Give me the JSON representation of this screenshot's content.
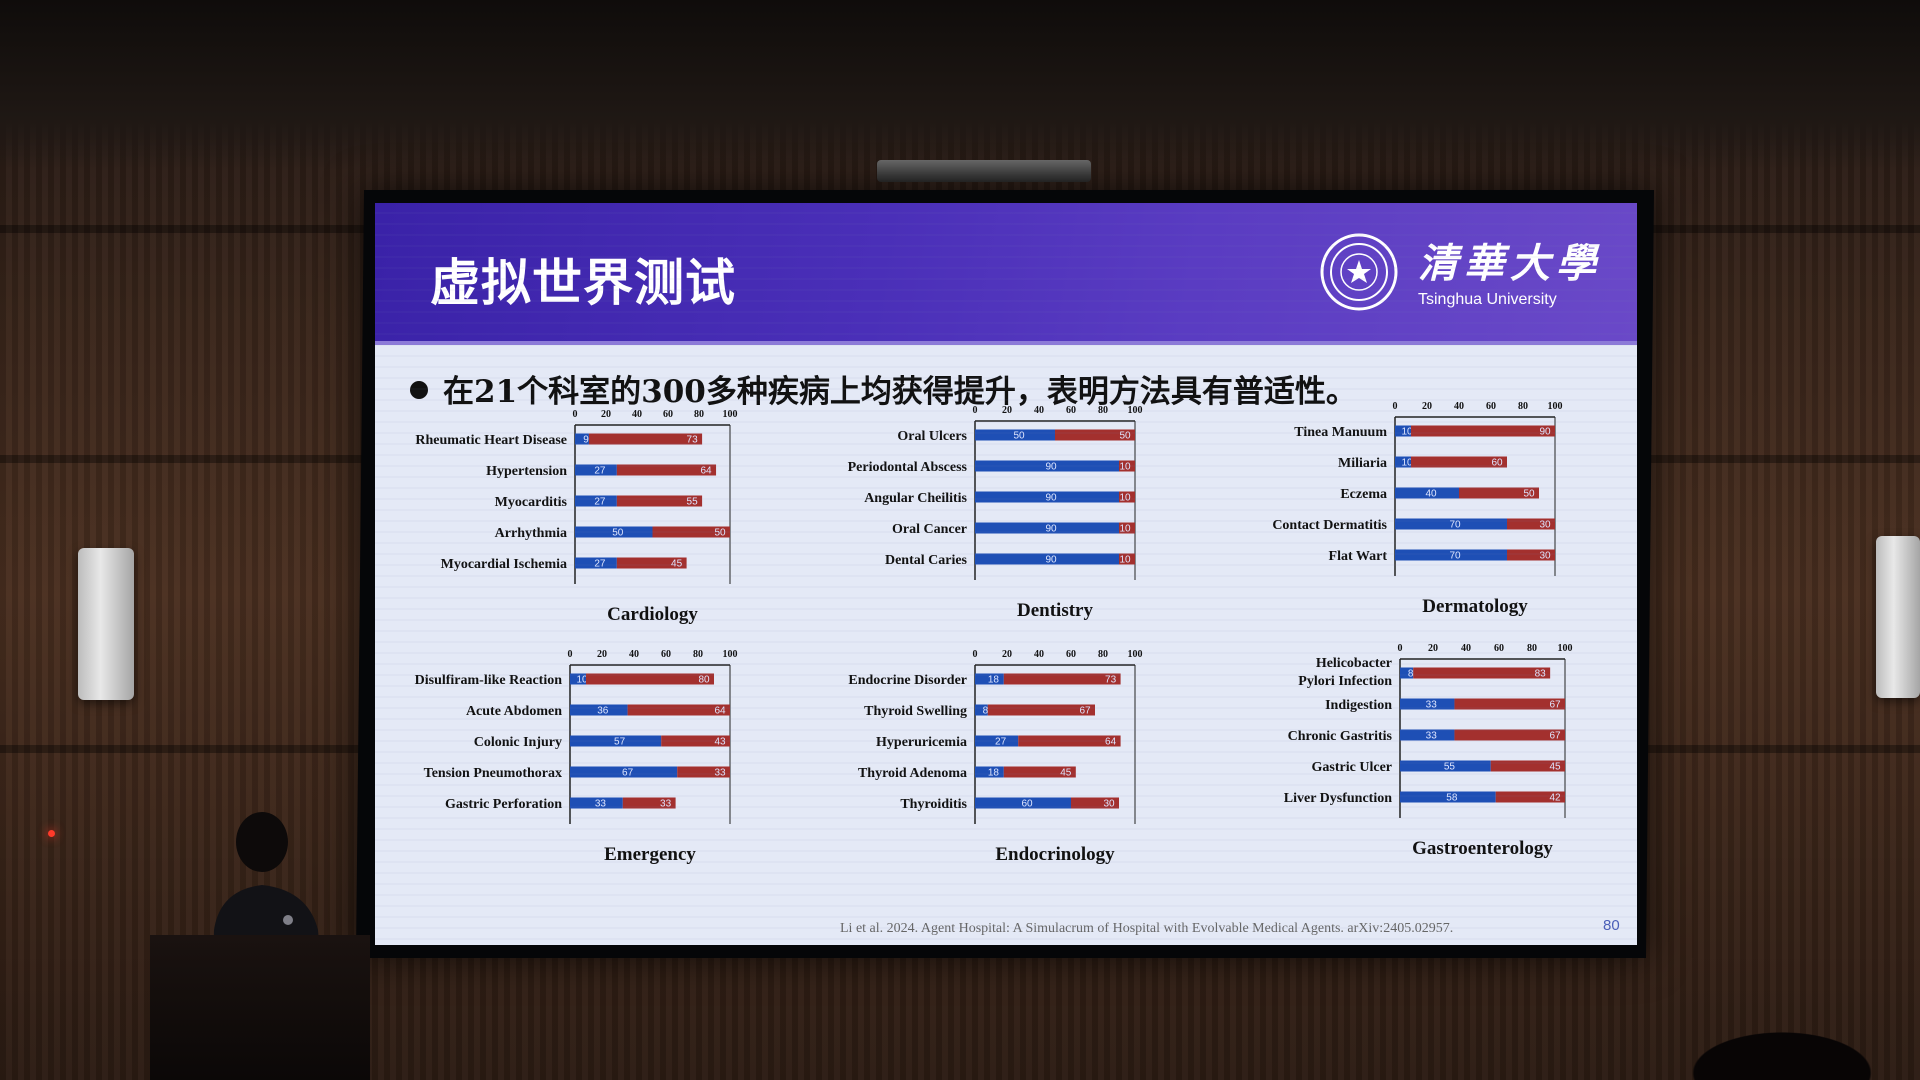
{
  "slide": {
    "title": "虚拟世界测试",
    "logo_text": "清華大學",
    "logo_subtext": "Tsinghua University",
    "bullet": "在21个科室的300多种疾病上均获得提升，表明方法具有普适性。",
    "citation": "Li et al. 2024. Agent Hospital: A Simulacrum of Hospital with Evolvable Medical Agents. arXiv:2405.02957.",
    "page_number": "80"
  },
  "colors": {
    "blue": "#1e4fb5",
    "red": "#a3302e",
    "header": "#4a2fb8"
  },
  "chart_data": [
    {
      "type": "bar",
      "title": "Cardiology",
      "xlim": [
        0,
        100
      ],
      "ticks": [
        "0",
        "20",
        "40",
        "60",
        "80",
        "100"
      ],
      "categories": [
        "Rheumatic Heart Disease",
        "Hypertension",
        "Myocarditis",
        "Arrhythmia",
        "Myocardial Ischemia"
      ],
      "series": [
        {
          "color": "#1e4fb5",
          "values": [
            9,
            27,
            27,
            50,
            27
          ]
        },
        {
          "color": "#a3302e",
          "values": [
            73,
            64,
            55,
            50,
            45
          ]
        }
      ]
    },
    {
      "type": "bar",
      "title": "Dentistry",
      "xlim": [
        0,
        100
      ],
      "ticks": [
        "0",
        "20",
        "40",
        "60",
        "80",
        "100"
      ],
      "categories": [
        "Oral Ulcers",
        "Periodontal Abscess",
        "Angular Cheilitis",
        "Oral Cancer",
        "Dental Caries"
      ],
      "series": [
        {
          "color": "#1e4fb5",
          "values": [
            50,
            90,
            90,
            90,
            90
          ]
        },
        {
          "color": "#a3302e",
          "values": [
            50,
            10,
            10,
            10,
            10
          ]
        }
      ]
    },
    {
      "type": "bar",
      "title": "Dermatology",
      "xlim": [
        0,
        100
      ],
      "ticks": [
        "0",
        "20",
        "40",
        "60",
        "80",
        "100"
      ],
      "categories": [
        "Tinea Manuum",
        "Miliaria",
        "Eczema",
        "Contact Dermatitis",
        "Flat Wart"
      ],
      "series": [
        {
          "color": "#1e4fb5",
          "values": [
            10,
            10,
            40,
            70,
            70
          ]
        },
        {
          "color": "#a3302e",
          "values": [
            90,
            60,
            50,
            30,
            30
          ]
        }
      ]
    },
    {
      "type": "bar",
      "title": "Emergency",
      "xlim": [
        0,
        100
      ],
      "ticks": [
        "0",
        "20",
        "40",
        "60",
        "80",
        "100"
      ],
      "categories": [
        "Disulfiram-like Reaction",
        "Acute Abdomen",
        "Colonic Injury",
        "Tension Pneumothorax",
        "Gastric Perforation"
      ],
      "series": [
        {
          "color": "#1e4fb5",
          "values": [
            10,
            36,
            57,
            67,
            33
          ]
        },
        {
          "color": "#a3302e",
          "values": [
            80,
            64,
            43,
            33,
            33
          ]
        }
      ]
    },
    {
      "type": "bar",
      "title": "Endocrinology",
      "xlim": [
        0,
        100
      ],
      "ticks": [
        "0",
        "20",
        "40",
        "60",
        "80",
        "100"
      ],
      "categories": [
        "Endocrine Disorder",
        "Thyroid Swelling",
        "Hyperuricemia",
        "Thyroid Adenoma",
        "Thyroiditis"
      ],
      "series": [
        {
          "color": "#1e4fb5",
          "values": [
            18,
            8,
            27,
            18,
            60
          ]
        },
        {
          "color": "#a3302e",
          "values": [
            73,
            67,
            64,
            45,
            30
          ]
        }
      ]
    },
    {
      "type": "bar",
      "title": "Gastroenterology",
      "xlim": [
        0,
        100
      ],
      "ticks": [
        "0",
        "20",
        "40",
        "60",
        "80",
        "100"
      ],
      "categories": [
        "Helicobacter Pylori Infection",
        "Indigestion",
        "Chronic Gastritis",
        "Gastric Ulcer",
        "Liver Dysfunction"
      ],
      "series": [
        {
          "color": "#1e4fb5",
          "values": [
            8,
            33,
            33,
            55,
            58
          ]
        },
        {
          "color": "#a3302e",
          "values": [
            83,
            67,
            67,
            45,
            42
          ]
        }
      ]
    }
  ]
}
